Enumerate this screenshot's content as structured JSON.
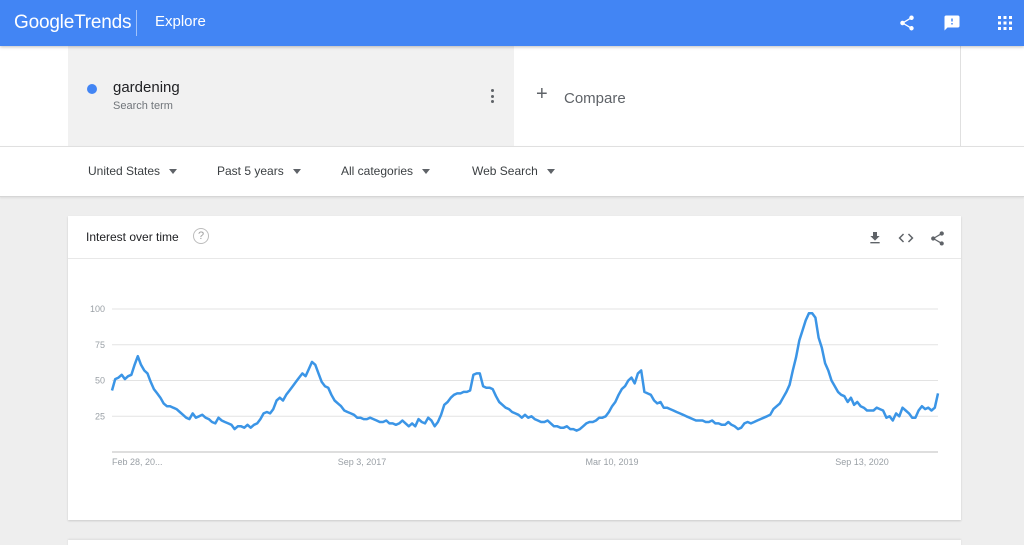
{
  "header": {
    "logo_google": "Google",
    "logo_trends": "Trends",
    "page_title": "Explore",
    "icons": [
      "share-icon",
      "feedback-icon",
      "apps-icon"
    ],
    "bg_color": "#4285f4"
  },
  "search": {
    "term": "gardening",
    "term_type": "Search term",
    "term_color": "#4285f4",
    "compare_label": "Compare"
  },
  "filters": {
    "region": "United States",
    "time_range": "Past 5 years",
    "category": "All categories",
    "property": "Web Search"
  },
  "card": {
    "title": "Interest over time",
    "help_symbol": "?",
    "icons": [
      "download-icon",
      "embed-icon",
      "share-icon"
    ]
  },
  "chart_data": {
    "type": "line",
    "title": "Interest over time",
    "xlabel": "",
    "ylabel": "",
    "ylim": [
      0,
      100
    ],
    "yticks": [
      100,
      75,
      50,
      25
    ],
    "grid": true,
    "line_color": "#3b95e6",
    "xtick_labels": [
      "Feb 28, 20...",
      "Sep 3, 2017",
      "Mar 10, 2019",
      "Sep 13, 2020"
    ],
    "series": [
      {
        "values": [
          43,
          51,
          52,
          54,
          51,
          53,
          54,
          61,
          67,
          61,
          57,
          55,
          49,
          44,
          41,
          38,
          34,
          32,
          32,
          31,
          30,
          28,
          26,
          24,
          23,
          27,
          24,
          25,
          26,
          24,
          23,
          21,
          20,
          24,
          22,
          21,
          20,
          19,
          16,
          18,
          18,
          17,
          19,
          17,
          19,
          20,
          23,
          27,
          28,
          27,
          30,
          36,
          38,
          36,
          40,
          43,
          46,
          49,
          52,
          55,
          53,
          58,
          63,
          61,
          55,
          49,
          46,
          45,
          40,
          36,
          34,
          32,
          29,
          28,
          27,
          26,
          24,
          24,
          23,
          23,
          24,
          23,
          22,
          21,
          21,
          22,
          20,
          20,
          19,
          20,
          22,
          20,
          18,
          20,
          18,
          23,
          21,
          20,
          24,
          22,
          18,
          21,
          26,
          33,
          35,
          38,
          40,
          41,
          41,
          42,
          42,
          43,
          54,
          55,
          55,
          46,
          45,
          45,
          44,
          39,
          35,
          33,
          31,
          30,
          28,
          27,
          26,
          24,
          26,
          24,
          25,
          23,
          22,
          21,
          21,
          22,
          20,
          18,
          18,
          17,
          17,
          18,
          16,
          16,
          15,
          16,
          18,
          20,
          21,
          21,
          22,
          24,
          24,
          25,
          28,
          32,
          35,
          40,
          44,
          46,
          50,
          52,
          48,
          55,
          57,
          42,
          41,
          40,
          36,
          34,
          35,
          31,
          31,
          30,
          29,
          28,
          27,
          26,
          25,
          24,
          23,
          22,
          22,
          22,
          21,
          21,
          22,
          20,
          20,
          19,
          19,
          21,
          19,
          18,
          16,
          17,
          20,
          21,
          20,
          21,
          22,
          23,
          24,
          25,
          26,
          30,
          32,
          34,
          38,
          42,
          47,
          57,
          66,
          78,
          85,
          92,
          97,
          97,
          94,
          80,
          73,
          62,
          57,
          50,
          46,
          42,
          40,
          39,
          35,
          38,
          33,
          35,
          32,
          31,
          29,
          29,
          29,
          31,
          30,
          29,
          24,
          25,
          22,
          27,
          25,
          31,
          29,
          27,
          24,
          24,
          29,
          32,
          30,
          31,
          29,
          31,
          41
        ]
      }
    ]
  }
}
